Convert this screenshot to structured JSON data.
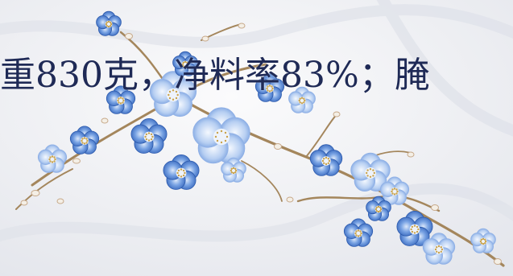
{
  "caption": {
    "text": "重830克，净料率83%；腌"
  },
  "illustration": {
    "subject": "blue-plum-blossom-branch",
    "colors": {
      "background": "#f3f3f6",
      "petal_dark": "#3f72c9",
      "petal_mid": "#6d9be0",
      "petal_light": "#b9d0f2",
      "center": "#eef3fb",
      "branch": "#a4865c",
      "bud": "#f4efe6"
    }
  }
}
